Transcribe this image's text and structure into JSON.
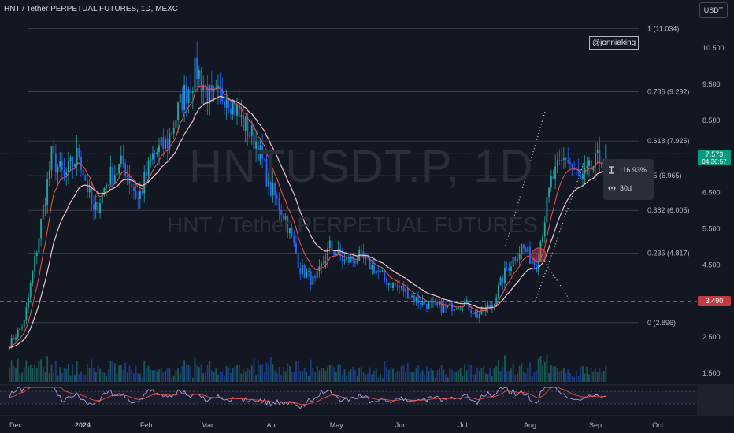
{
  "header": {
    "symbol_line": "HNT / Tether PERPETUAL FUTURES, 1D, MEXC"
  },
  "toolbar": {
    "currency_label": "USDT"
  },
  "handle": "@jonnieking",
  "watermark": {
    "ticker": "HNTUSDT.P, 1D",
    "name": "HNT / Tether PERPETUAL FUTURES"
  },
  "colors": {
    "bg": "#131722",
    "up": "#26a69a",
    "down": "#2962ff",
    "ema_fast": "#ef5350",
    "ema_slow": "#f0c0c8",
    "fib": "#434651",
    "support": "#e0434c"
  },
  "price_labels": {
    "current": "7.573",
    "countdown": "04:36:57",
    "support": "3.490"
  },
  "measure_tooltip": {
    "percent": "116.93%",
    "duration": "30d"
  },
  "chart_data": {
    "type": "candlestick",
    "x_axis_labels": [
      "Dec",
      "2024",
      "Feb",
      "Mar",
      "Apr",
      "May",
      "Jun",
      "Jul",
      "Aug",
      "Sep",
      "Oct"
    ],
    "y_axis_ticks": [
      "10.500",
      "9.500",
      "8.500",
      "6.500",
      "5.500",
      "4.500",
      "2.500",
      "1.500"
    ],
    "ylim": [
      1.3,
      11.8
    ],
    "support_level": 3.49,
    "fibonacci": [
      {
        "level": 1,
        "price": 11.034,
        "label": "1 (11.034)"
      },
      {
        "level": 0.786,
        "price": 9.292,
        "label": "0.786 (9.292)"
      },
      {
        "level": 0.618,
        "price": 7.925,
        "label": "0.618 (7.925)"
      },
      {
        "level": 0.5,
        "price": 6.965,
        "label": "0.5 (6.965)"
      },
      {
        "level": 0.382,
        "price": 6.005,
        "label": "0.382 (6.005)"
      },
      {
        "level": 0.236,
        "price": 4.817,
        "label": "0.236 (4.817)"
      },
      {
        "level": 0,
        "price": 2.896,
        "label": "0 (2.896)"
      }
    ],
    "price_path": [
      [
        "2023-11-28",
        2.3
      ],
      [
        "2023-12-05",
        2.9
      ],
      [
        "2023-12-12",
        5.3
      ],
      [
        "2023-12-18",
        7.5
      ],
      [
        "2023-12-24",
        6.9
      ],
      [
        "2023-12-31",
        7.6
      ],
      [
        "2024-01-07",
        5.9
      ],
      [
        "2024-01-14",
        6.9
      ],
      [
        "2024-01-21",
        7.3
      ],
      [
        "2024-01-28",
        6.3
      ],
      [
        "2024-02-04",
        7.5
      ],
      [
        "2024-02-11",
        7.9
      ],
      [
        "2024-02-18",
        9.1
      ],
      [
        "2024-02-25",
        9.9
      ],
      [
        "2024-03-03",
        9.0
      ],
      [
        "2024-03-10",
        9.3
      ],
      [
        "2024-03-17",
        8.5
      ],
      [
        "2024-03-24",
        7.9
      ],
      [
        "2024-03-31",
        6.6
      ],
      [
        "2024-04-07",
        5.8
      ],
      [
        "2024-04-14",
        4.4
      ],
      [
        "2024-04-21",
        4.0
      ],
      [
        "2024-04-28",
        5.0
      ],
      [
        "2024-05-05",
        4.6
      ],
      [
        "2024-05-12",
        4.7
      ],
      [
        "2024-05-19",
        4.4
      ],
      [
        "2024-05-26",
        4.0
      ],
      [
        "2024-06-02",
        3.8
      ],
      [
        "2024-06-09",
        3.5
      ],
      [
        "2024-06-16",
        3.35
      ],
      [
        "2024-06-23",
        3.3
      ],
      [
        "2024-06-30",
        3.5
      ],
      [
        "2024-07-07",
        3.1
      ],
      [
        "2024-07-14",
        3.4
      ],
      [
        "2024-07-21",
        4.4
      ],
      [
        "2024-07-28",
        5.0
      ],
      [
        "2024-08-04",
        4.5
      ],
      [
        "2024-08-11",
        6.8
      ],
      [
        "2024-08-18",
        7.5
      ],
      [
        "2024-08-25",
        6.8
      ],
      [
        "2024-09-01",
        7.3
      ],
      [
        "2024-09-06",
        7.57
      ]
    ]
  }
}
